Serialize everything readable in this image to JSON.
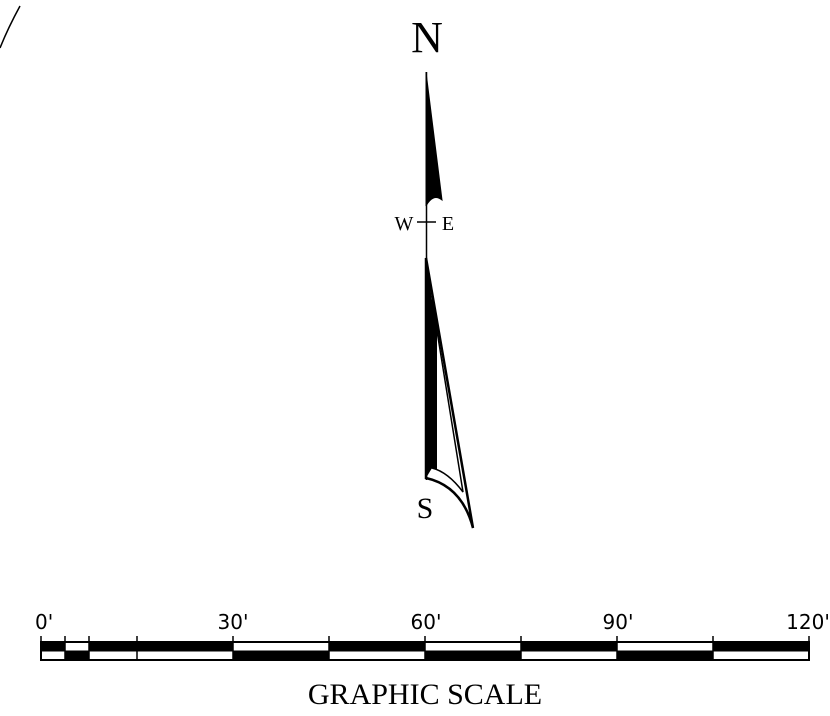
{
  "north_arrow": {
    "north": "N",
    "south": "S",
    "west": "W",
    "east": "E"
  },
  "graphic_scale": {
    "title": "GRAPHIC SCALE",
    "tick_labels": [
      "0'",
      "30'",
      "60'",
      "90'",
      "120'"
    ]
  }
}
